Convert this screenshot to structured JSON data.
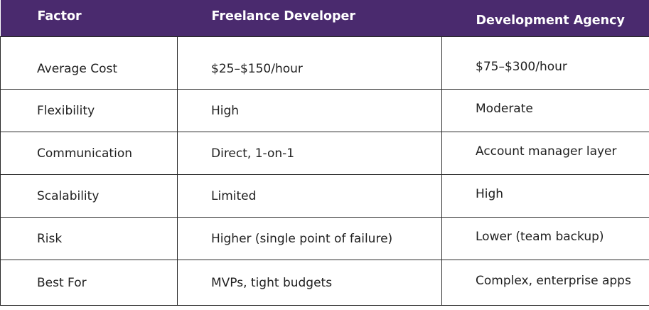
{
  "table": {
    "headers": [
      "Factor",
      "Freelance Developer",
      "Development Agency"
    ],
    "rows": [
      [
        "Average Cost",
        "$25–$150/hour",
        "$75–$300/hour"
      ],
      [
        "Flexibility",
        "High",
        "Moderate"
      ],
      [
        "Communication",
        "Direct, 1-on-1",
        "Account manager layer"
      ],
      [
        "Scalability",
        "Limited",
        "High"
      ],
      [
        "Risk",
        "Higher (single point of failure)",
        "Lower (team backup)"
      ],
      [
        "Best For",
        "MVPs, tight budgets",
        "Complex, enterprise apps"
      ]
    ]
  },
  "colors": {
    "header_bg": "#4a2a6e",
    "header_text": "#ffffff",
    "body_text": "#1f1f1f",
    "border": "#2a2a2a"
  }
}
